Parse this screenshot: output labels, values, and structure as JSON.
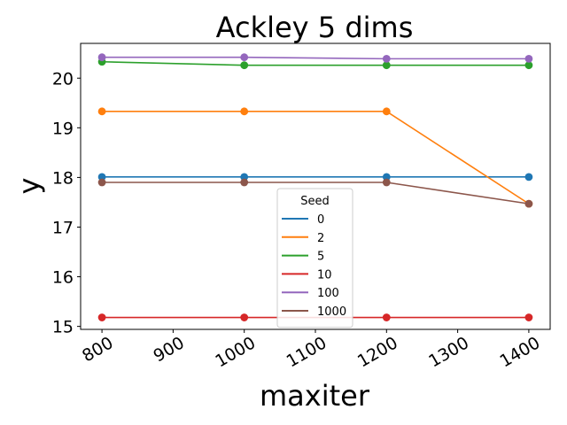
{
  "chart_data": {
    "type": "line",
    "title": "Ackley 5 dims",
    "xlabel": "maxiter",
    "ylabel": "y",
    "x": [
      800,
      1000,
      1200,
      1400
    ],
    "xlim": [
      770,
      1430
    ],
    "ylim": [
      14.94,
      20.7
    ],
    "xticks": [
      800,
      900,
      1000,
      1100,
      1200,
      1300,
      1400
    ],
    "yticks": [
      15,
      16,
      17,
      18,
      19,
      20
    ],
    "grid": false,
    "legend": {
      "title": "Seed",
      "position": "center-bottom"
    },
    "series": [
      {
        "name": "0",
        "color": "#1f77b4",
        "values": [
          18.01,
          18.01,
          18.01,
          18.01
        ]
      },
      {
        "name": "2",
        "color": "#ff7f0e",
        "values": [
          19.33,
          19.33,
          19.33,
          17.47
        ]
      },
      {
        "name": "5",
        "color": "#2ca02c",
        "values": [
          20.33,
          20.26,
          20.26,
          20.26
        ]
      },
      {
        "name": "10",
        "color": "#d62728",
        "values": [
          15.18,
          15.18,
          15.18,
          15.18
        ]
      },
      {
        "name": "100",
        "color": "#9467bd",
        "values": [
          20.42,
          20.42,
          20.39,
          20.39
        ]
      },
      {
        "name": "1000",
        "color": "#8c564b",
        "values": [
          17.9,
          17.9,
          17.9,
          17.47
        ]
      }
    ]
  }
}
